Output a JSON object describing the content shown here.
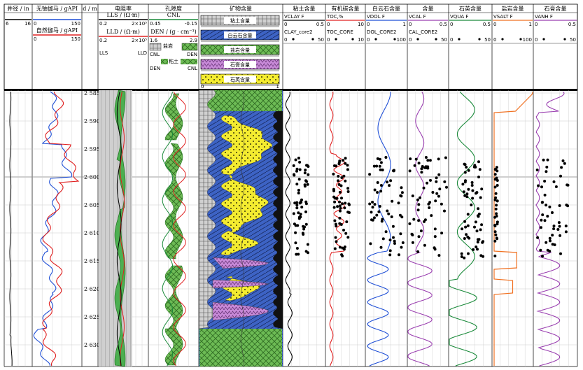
{
  "tracks": [
    {
      "id": "caliper",
      "title": "井径 / in",
      "curves": [
        {
          "name": "",
          "min": "6",
          "max": "16",
          "color": "#000000"
        }
      ]
    },
    {
      "id": "gr",
      "title": "无铀伽马 / gAPI",
      "curves": [
        {
          "name": "",
          "min": "0",
          "max": "150",
          "color": "#1f4fd6"
        },
        {
          "name": "自然伽马 / gAPI",
          "min": "0",
          "max": "150",
          "color": "#e02020"
        }
      ]
    },
    {
      "id": "depth",
      "title": "d / m"
    },
    {
      "id": "res",
      "title": "电阻率",
      "curves": [
        {
          "name": "LLS / (Ω·m)",
          "min": "0.2",
          "max": "2×10⁵",
          "color": "#000000"
        },
        {
          "name": "LLD / (Ω·m)",
          "min": "0.2",
          "max": "2×10⁵",
          "color": "#e02020"
        }
      ],
      "fill_labels": [
        "LLS",
        "LLD"
      ]
    },
    {
      "id": "por",
      "title": "孔隙度",
      "curves": [
        {
          "name": "CNL",
          "min": "0.45",
          "max": "-0.15",
          "color": "#1a8a3a"
        },
        {
          "name": "DEN / (g · cm⁻³)",
          "min": "1.6",
          "max": "2.9",
          "color": "#e02020"
        }
      ],
      "fill_labels": [
        "CNL",
        "DEN",
        "盐岩",
        "粘土",
        "DEN",
        "CNL"
      ]
    },
    {
      "id": "mineral",
      "title": "矿物含量",
      "legend": [
        "粘土含量",
        "白云石含量",
        "盐岩含量",
        "石膏含量",
        "石英含量"
      ],
      "scale_min": "0",
      "scale_max": "1"
    },
    {
      "id": "clay",
      "title": "粘土含量",
      "curves": [
        {
          "name": "VCLAY F",
          "min": "0",
          "max": "0.5"
        },
        {
          "name": "CLAY_core2",
          "min": "0",
          "max": "50"
        }
      ]
    },
    {
      "id": "toc",
      "title": "有机碳含量",
      "curves": [
        {
          "name": "TOC,%",
          "min": "0",
          "max": "10"
        },
        {
          "name": "TOC_CORE",
          "min": "0",
          "max": "10"
        }
      ]
    },
    {
      "id": "dol",
      "title": "白云石含量",
      "curves": [
        {
          "name": "VDOL F",
          "min": "0",
          "max": "1"
        },
        {
          "name": "DOL_CORE2",
          "min": "0",
          "max": "100"
        }
      ]
    },
    {
      "id": "cal",
      "title": "含量",
      "curves": [
        {
          "name": "VCAL F",
          "min": "0",
          "max": "0.5"
        },
        {
          "name": "CAL_CORE2",
          "min": "0",
          "max": "50"
        }
      ]
    },
    {
      "id": "qua",
      "title": "石英含量",
      "curves": [
        {
          "name": "VQUA F",
          "min": "0",
          "max": "0.5"
        },
        {
          "name": "",
          "min": "0",
          "max": "50"
        }
      ]
    },
    {
      "id": "salt",
      "title": "盐岩含量",
      "curves": [
        {
          "name": "VSALT F",
          "min": "0",
          "max": "1"
        },
        {
          "name": "",
          "min": "0",
          "max": "100"
        }
      ]
    },
    {
      "id": "anh",
      "title": "石膏含量",
      "curves": [
        {
          "name": "VANH F",
          "min": "0",
          "max": "0.5"
        },
        {
          "name": "",
          "min": "0",
          "max": "50"
        }
      ]
    }
  ],
  "depth_labels": [
    "2 585",
    "2 590",
    "2 595",
    "2 600",
    "2 605",
    "2 610",
    "2 615",
    "2 620",
    "2 625",
    "2 630"
  ],
  "colors": {
    "clay": "#3a9a3a",
    "dolomite": "#2f5fc0",
    "salt": "#7a7a7a",
    "gypsum": "#c070c0",
    "quartz": "#f0e020",
    "blue": "#1f4fd6",
    "red": "#e02020",
    "green": "#1a8a3a",
    "purple": "#9a3fb0",
    "orange": "#f07020"
  }
}
